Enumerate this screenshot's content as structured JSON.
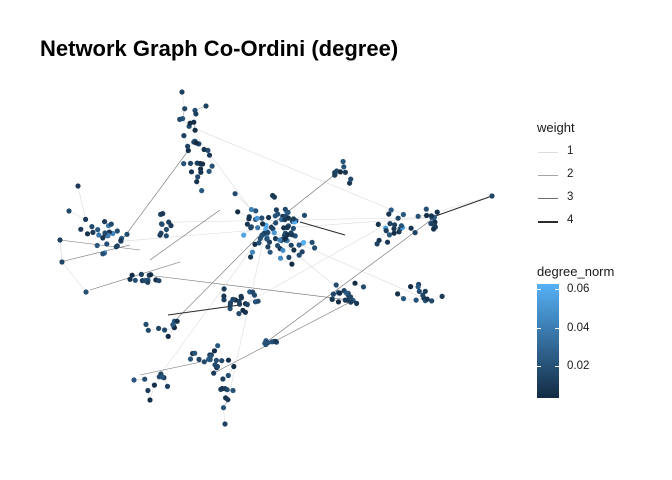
{
  "title": "Network Graph Co-Ordini (degree)",
  "legend_weight": {
    "title": "weight",
    "entries": [
      {
        "label": "1",
        "color": "#dcdcdc"
      },
      {
        "label": "2",
        "color": "#a6a6a6"
      },
      {
        "label": "3",
        "color": "#6e6e6e"
      },
      {
        "label": "4",
        "color": "#2b2b2b"
      }
    ]
  },
  "legend_degree": {
    "title": "degree_norm",
    "ticks": [
      "0.06",
      "0.04",
      "0.02"
    ],
    "color_high": "#56b1f7",
    "color_low": "#132b43"
  },
  "colors": {
    "node_low": "#132b43",
    "node_high": "#56b1f7",
    "edge": "#c8c8c8"
  }
}
